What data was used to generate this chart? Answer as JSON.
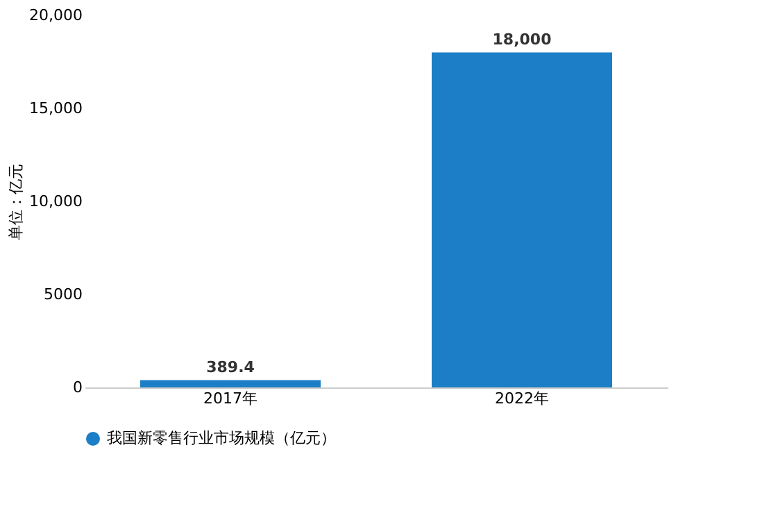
{
  "chart_data": {
    "type": "bar",
    "categories": [
      "2017年",
      "2022年"
    ],
    "ylabel": "单位：亿元",
    "series": [
      {
        "name": "我国新零售行业市场规模（亿元）",
        "color": "#1b7ec6",
        "values": [
          389.4,
          18000
        ]
      }
    ],
    "value_labels": [
      "389.4",
      "18,000"
    ],
    "ylim": [
      0,
      20000
    ],
    "yticks": [
      0,
      5000,
      {
        "value": 10000,
        "label": "10,000"
      },
      {
        "value": 15000,
        "label": "15,000"
      },
      {
        "value": 20000,
        "label": "20,000"
      }
    ],
    "grid": false,
    "legend": "bottom"
  }
}
